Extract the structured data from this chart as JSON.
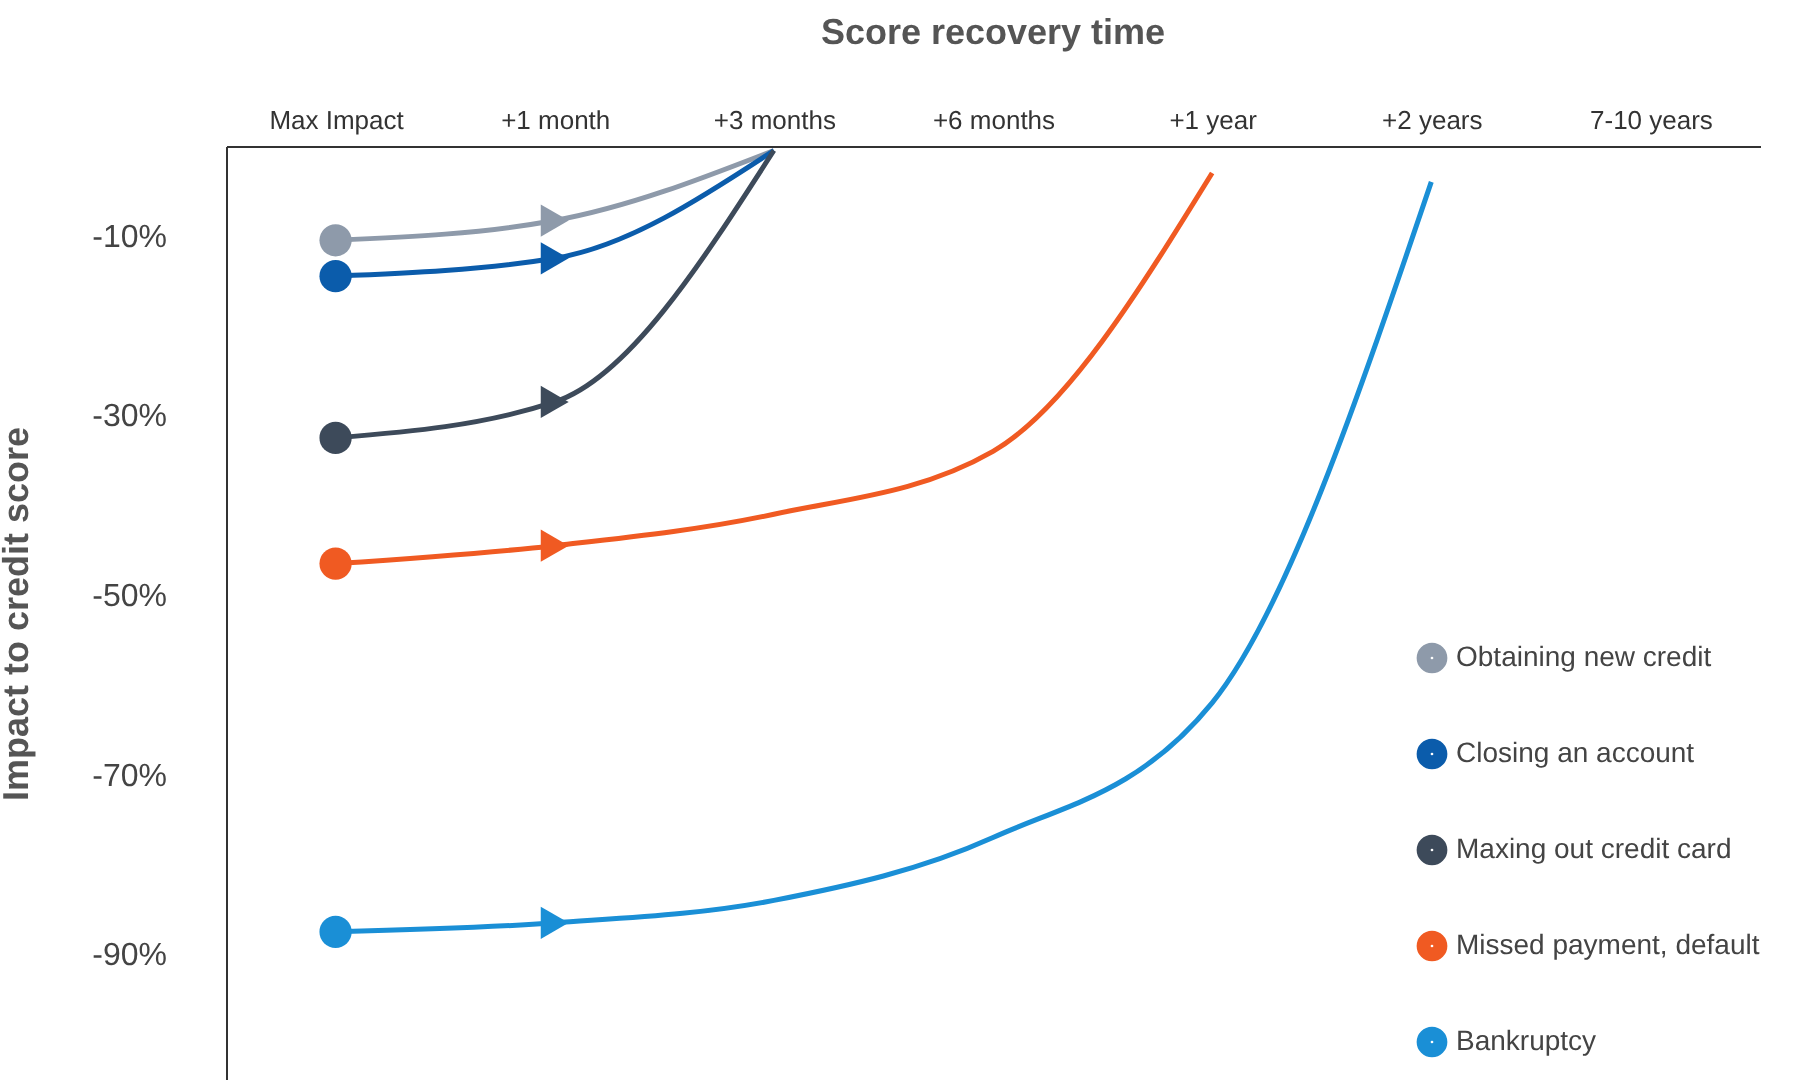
{
  "chart_data": {
    "type": "line",
    "title": "Score recovery time",
    "ylabel": "Impact to credit score",
    "categories": [
      "Max Impact",
      "+1 month",
      "+3 months",
      "+6 months",
      "+1 year",
      "+2 years",
      "7-10 years"
    ],
    "ylim": [
      -104,
      0
    ],
    "yticks": [
      {
        "value": -10,
        "label": "-10%"
      },
      {
        "value": -30,
        "label": "-30%"
      },
      {
        "value": -50,
        "label": "-50%"
      },
      {
        "value": -70,
        "label": "-70%"
      },
      {
        "value": -90,
        "label": "-90%"
      }
    ],
    "grid": false,
    "legend": "bottom right",
    "marker": "none",
    "series": [
      {
        "name": "Obtaining new credit",
        "color": "#8e9aaa",
        "values": [
          -10.5,
          -8.3,
          -0.5,
          null,
          null,
          null,
          null
        ]
      },
      {
        "name": "Closing an account",
        "color": "#0b5cab",
        "values": [
          -14.5,
          -12.5,
          -0.5,
          null,
          null,
          null,
          null
        ]
      },
      {
        "name": "Maxing out credit card",
        "color": "#3d4a5a",
        "values": [
          -32.5,
          -28.5,
          -0.5,
          null,
          null,
          null,
          null
        ]
      },
      {
        "name": "Missed payment, default",
        "color": "#f05a22",
        "values": [
          -46.5,
          -44.5,
          -41,
          -34,
          -3,
          null,
          null
        ]
      },
      {
        "name": "Bankruptcy",
        "color": "#1a8fd6",
        "values": [
          -87.5,
          -86.5,
          -84,
          -77,
          -62,
          -4,
          null
        ]
      },
      {
        "type": "scatter",
        "marker": "circle",
        "x": [
          "Max Impact",
          "Max Impact",
          "Max Impact",
          "Max Impact",
          "Max Impact"
        ],
        "values": [
          -10.5,
          -14.5,
          -32.5,
          -46.5,
          -87.5
        ],
        "colors": [
          "#8e9aaa",
          "#0b5cab",
          "#3d4a5a",
          "#f05a22",
          "#1a8fd6"
        ]
      },
      {
        "type": "scatter",
        "marker": "triangle",
        "x": [
          "+1 month",
          "+1 month",
          "+1 month",
          "+1 month",
          "+1 month"
        ],
        "values": [
          -8.3,
          -12.5,
          -28.5,
          -44.5,
          -86.5
        ],
        "colors": [
          "#8e9aaa",
          "#0b5cab",
          "#3d4a5a",
          "#f05a22",
          "#1a8fd6"
        ]
      }
    ]
  }
}
